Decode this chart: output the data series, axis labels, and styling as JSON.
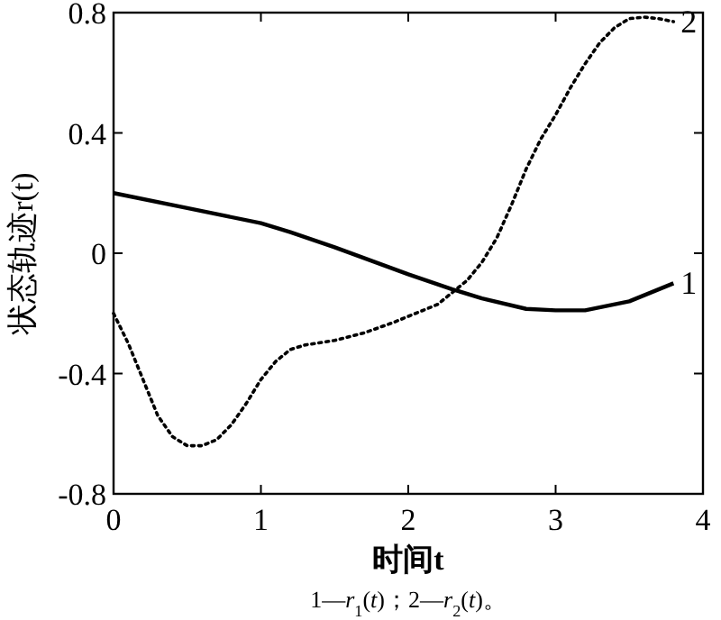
{
  "chart_data": {
    "type": "line",
    "xlabel": "时间t",
    "ylabel": "状态轨迹r(t)",
    "annotations": [
      "1—*r*$_{1}$(*t*)；2—*r*$_{2}$(*t*)。"
    ],
    "xlim": [
      0,
      4
    ],
    "xticks": [
      0,
      1,
      2,
      3,
      4
    ],
    "ylim": [
      -0.8,
      0.8
    ],
    "yticks": [
      -0.8,
      -0.4,
      0,
      0.4,
      0.8
    ],
    "grid": false,
    "legend": "right",
    "marker": "none",
    "series": [
      {
        "name": "1",
        "color": "#000000",
        "line_style": "solid",
        "x": [
          0,
          0.5,
          1,
          1.2,
          1.5,
          2,
          2.3,
          2.5,
          2.8,
          3,
          3.2,
          3.5,
          3.8
        ],
        "values": [
          0.2,
          0.15,
          0.1,
          0.07,
          0.02,
          -0.07,
          -0.12,
          -0.15,
          -0.185,
          -0.19,
          -0.19,
          -0.16,
          -0.1
        ]
      },
      {
        "name": "2",
        "color": "#000000",
        "line_style": "dotted",
        "x": [
          0,
          0.1,
          0.2,
          0.3,
          0.4,
          0.5,
          0.6,
          0.7,
          0.8,
          0.9,
          1.0,
          1.1,
          1.2,
          1.3,
          1.5,
          1.7,
          1.9,
          2.0,
          2.2,
          2.4,
          2.5,
          2.6,
          2.7,
          2.8,
          2.9,
          3.0,
          3.1,
          3.2,
          3.3,
          3.4,
          3.5,
          3.6,
          3.7,
          3.8
        ],
        "values": [
          -0.2,
          -0.3,
          -0.42,
          -0.54,
          -0.61,
          -0.64,
          -0.64,
          -0.62,
          -0.57,
          -0.5,
          -0.42,
          -0.36,
          -0.32,
          -0.305,
          -0.29,
          -0.265,
          -0.23,
          -0.21,
          -0.17,
          -0.09,
          -0.03,
          0.05,
          0.16,
          0.28,
          0.38,
          0.46,
          0.55,
          0.63,
          0.7,
          0.75,
          0.78,
          0.785,
          0.78,
          0.77
        ]
      }
    ]
  }
}
